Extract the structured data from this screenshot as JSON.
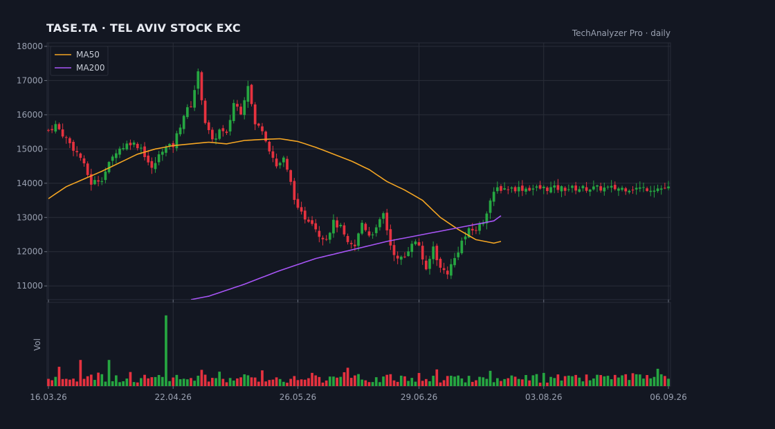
{
  "header": {
    "title": "TASE.TA  ·  TEL AVIV STOCK EXC",
    "subtitle": "TechAnalyzer Pro · daily"
  },
  "colors": {
    "background": "#131722",
    "grid": "#2a2e39",
    "up": "#26a641",
    "down": "#e5323f",
    "ma50": "#f5a623",
    "ma200": "#a855f7",
    "text": "#9aa1b1"
  },
  "chart_data": {
    "type": "candlestick",
    "start_date": "2026-03-16",
    "end_date": "2026-09-06",
    "x_tick_labels": [
      "16.03.26",
      "22.04.26",
      "26.05.26",
      "29.06.26",
      "03.08.26",
      "06.09.26"
    ],
    "ylim": [
      10600,
      18100
    ],
    "y_ticks": [
      11000,
      12000,
      13000,
      14000,
      15000,
      16000,
      17000,
      18000
    ],
    "volume_ylabel": "Vol",
    "legend": {
      "position": "top-left",
      "entries": [
        {
          "name": "MA50",
          "color": "#f5a623"
        },
        {
          "name": "MA200",
          "color": "#a855f7"
        }
      ]
    },
    "close_anchors": [
      [
        0,
        15550
      ],
      [
        2,
        15700
      ],
      [
        5,
        15300
      ],
      [
        9,
        14750
      ],
      [
        12,
        14000
      ],
      [
        15,
        14150
      ],
      [
        19,
        14950
      ],
      [
        23,
        15200
      ],
      [
        26,
        15050
      ],
      [
        29,
        14400
      ],
      [
        32,
        15000
      ],
      [
        35,
        15100
      ],
      [
        38,
        16000
      ],
      [
        40,
        16300
      ],
      [
        42,
        17200
      ],
      [
        44,
        15800
      ],
      [
        46,
        15200
      ],
      [
        48,
        15550
      ],
      [
        50,
        15400
      ],
      [
        52,
        16350
      ],
      [
        54,
        16100
      ],
      [
        56,
        16900
      ],
      [
        58,
        15700
      ],
      [
        60,
        15600
      ],
      [
        62,
        15000
      ],
      [
        64,
        14500
      ],
      [
        66,
        14700
      ],
      [
        68,
        14000
      ],
      [
        70,
        13200
      ],
      [
        72,
        13000
      ],
      [
        74,
        12900
      ],
      [
        76,
        12500
      ],
      [
        78,
        12400
      ],
      [
        80,
        12850
      ],
      [
        82,
        12700
      ],
      [
        84,
        12200
      ],
      [
        86,
        12150
      ],
      [
        88,
        12850
      ],
      [
        90,
        12500
      ],
      [
        92,
        12650
      ],
      [
        94,
        13100
      ],
      [
        96,
        12200
      ],
      [
        98,
        11750
      ],
      [
        100,
        11850
      ],
      [
        102,
        12300
      ],
      [
        104,
        12200
      ],
      [
        106,
        11400
      ],
      [
        108,
        12150
      ],
      [
        110,
        11500
      ],
      [
        112,
        11400
      ],
      [
        114,
        11800
      ],
      [
        116,
        12300
      ],
      [
        118,
        12600
      ],
      [
        120,
        12650
      ],
      [
        122,
        12900
      ],
      [
        124,
        13500
      ],
      [
        126,
        13850
      ]
    ],
    "ma50": [
      [
        0,
        13550
      ],
      [
        5,
        13900
      ],
      [
        15,
        14350
      ],
      [
        25,
        14850
      ],
      [
        30,
        15000
      ],
      [
        35,
        15100
      ],
      [
        40,
        15150
      ],
      [
        45,
        15200
      ],
      [
        50,
        15150
      ],
      [
        55,
        15250
      ],
      [
        60,
        15280
      ],
      [
        65,
        15300
      ],
      [
        70,
        15220
      ],
      [
        75,
        15050
      ],
      [
        80,
        14850
      ],
      [
        85,
        14650
      ],
      [
        90,
        14400
      ],
      [
        95,
        14050
      ],
      [
        100,
        13800
      ],
      [
        105,
        13500
      ],
      [
        110,
        13000
      ],
      [
        115,
        12650
      ],
      [
        120,
        12350
      ],
      [
        125,
        12250
      ],
      [
        127,
        12300
      ]
    ],
    "ma200": [
      [
        40,
        10600
      ],
      [
        45,
        10700
      ],
      [
        55,
        11050
      ],
      [
        65,
        11450
      ],
      [
        75,
        11800
      ],
      [
        85,
        12050
      ],
      [
        95,
        12300
      ],
      [
        105,
        12500
      ],
      [
        115,
        12700
      ],
      [
        125,
        12900
      ],
      [
        127,
        13050
      ]
    ],
    "volume_spikes": [
      [
        9,
        2.7
      ],
      [
        17,
        2.7
      ],
      [
        33,
        7.3
      ]
    ]
  }
}
